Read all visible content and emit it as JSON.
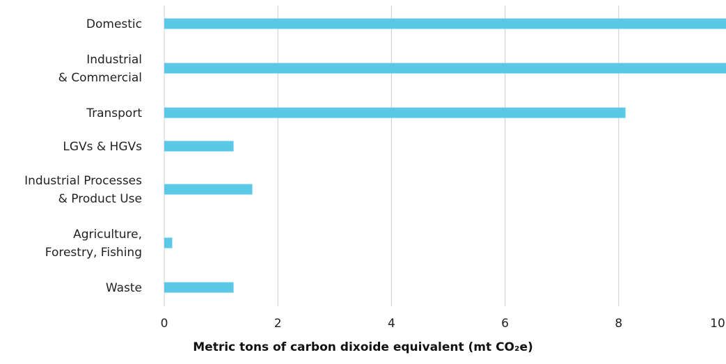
{
  "chart_data": {
    "type": "bar",
    "orientation": "horizontal",
    "categories": [
      [
        "Domestic"
      ],
      [
        "Industrial",
        "& Commercial"
      ],
      [
        "Transport"
      ],
      [
        "LGVs & HGVs"
      ],
      [
        "Industrial Processes",
        "& Product Use"
      ],
      [
        "Agriculture,",
        "Forestry, Fishing"
      ],
      [
        "Waste"
      ]
    ],
    "values": [
      10.2,
      10.2,
      8.12,
      1.22,
      1.55,
      0.14,
      1.22
    ],
    "xlabel": "Metric tons of carbon dixoide equivalent (mt CO₂e)",
    "xlim": [
      0,
      10
    ],
    "xticks": [
      0,
      2,
      4,
      6,
      8,
      10
    ],
    "grid": true,
    "bar_color": "#5bc8e8"
  }
}
